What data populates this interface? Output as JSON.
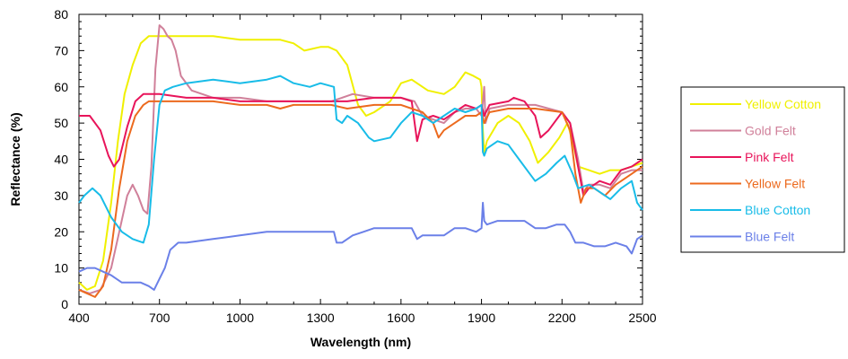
{
  "chart_data": {
    "type": "line",
    "title": "",
    "xlabel": "Wavelength (nm)",
    "ylabel": "Reflectance (%)",
    "xlim": [
      400,
      2500
    ],
    "ylim": [
      0,
      80
    ],
    "x_ticks": [
      "400",
      "700",
      "1000",
      "1300",
      "1600",
      "1900",
      "2200",
      "2500"
    ],
    "y_ticks": [
      "0",
      "10",
      "20",
      "30",
      "40",
      "50",
      "60",
      "70",
      "80"
    ],
    "grid": false,
    "legend_position": "right",
    "series": [
      {
        "name": "Yellow Cotton",
        "color": "#f0f000",
        "points": [
          [
            400,
            6
          ],
          [
            430,
            4
          ],
          [
            460,
            5
          ],
          [
            490,
            12
          ],
          [
            520,
            28
          ],
          [
            545,
            45
          ],
          [
            570,
            58
          ],
          [
            600,
            66
          ],
          [
            630,
            72
          ],
          [
            660,
            74
          ],
          [
            700,
            74
          ],
          [
            750,
            74
          ],
          [
            800,
            74
          ],
          [
            900,
            74
          ],
          [
            1000,
            73
          ],
          [
            1100,
            73
          ],
          [
            1150,
            73
          ],
          [
            1200,
            72
          ],
          [
            1240,
            70
          ],
          [
            1300,
            71
          ],
          [
            1330,
            71
          ],
          [
            1360,
            70
          ],
          [
            1400,
            66
          ],
          [
            1440,
            55
          ],
          [
            1470,
            52
          ],
          [
            1500,
            53
          ],
          [
            1560,
            56
          ],
          [
            1600,
            61
          ],
          [
            1640,
            62
          ],
          [
            1700,
            59
          ],
          [
            1760,
            58
          ],
          [
            1800,
            60
          ],
          [
            1840,
            64
          ],
          [
            1870,
            63
          ],
          [
            1895,
            62
          ],
          [
            1900,
            60
          ],
          [
            1905,
            48
          ],
          [
            1910,
            42
          ],
          [
            1920,
            45
          ],
          [
            1960,
            50
          ],
          [
            2000,
            52
          ],
          [
            2040,
            50
          ],
          [
            2080,
            45
          ],
          [
            2110,
            39
          ],
          [
            2150,
            42
          ],
          [
            2190,
            46
          ],
          [
            2220,
            50
          ],
          [
            2240,
            45
          ],
          [
            2260,
            38
          ],
          [
            2300,
            37
          ],
          [
            2340,
            36
          ],
          [
            2380,
            37
          ],
          [
            2420,
            37
          ],
          [
            2460,
            38
          ],
          [
            2500,
            39
          ]
        ]
      },
      {
        "name": "Gold Felt",
        "color": "#d0809a",
        "points": [
          [
            400,
            4
          ],
          [
            440,
            3
          ],
          [
            480,
            4
          ],
          [
            520,
            10
          ],
          [
            550,
            20
          ],
          [
            580,
            30
          ],
          [
            600,
            33
          ],
          [
            620,
            30
          ],
          [
            640,
            26
          ],
          [
            655,
            25
          ],
          [
            670,
            38
          ],
          [
            685,
            65
          ],
          [
            700,
            77
          ],
          [
            715,
            76
          ],
          [
            730,
            74
          ],
          [
            745,
            73
          ],
          [
            760,
            70
          ],
          [
            780,
            63
          ],
          [
            820,
            59
          ],
          [
            900,
            57
          ],
          [
            1000,
            57
          ],
          [
            1100,
            56
          ],
          [
            1200,
            56
          ],
          [
            1300,
            56
          ],
          [
            1340,
            56
          ],
          [
            1380,
            57
          ],
          [
            1420,
            58
          ],
          [
            1500,
            57
          ],
          [
            1600,
            57
          ],
          [
            1650,
            56
          ],
          [
            1680,
            52
          ],
          [
            1720,
            51
          ],
          [
            1760,
            50
          ],
          [
            1800,
            53
          ],
          [
            1840,
            54
          ],
          [
            1880,
            54
          ],
          [
            1900,
            52
          ],
          [
            1910,
            60
          ],
          [
            1915,
            50
          ],
          [
            1930,
            54
          ],
          [
            2000,
            55
          ],
          [
            2100,
            55
          ],
          [
            2200,
            53
          ],
          [
            2230,
            50
          ],
          [
            2260,
            40
          ],
          [
            2280,
            31
          ],
          [
            2300,
            33
          ],
          [
            2340,
            33
          ],
          [
            2380,
            32
          ],
          [
            2420,
            36
          ],
          [
            2460,
            37
          ],
          [
            2500,
            37
          ]
        ]
      },
      {
        "name": "Pink Felt",
        "color": "#e8145a",
        "points": [
          [
            400,
            52
          ],
          [
            440,
            52
          ],
          [
            480,
            48
          ],
          [
            510,
            41
          ],
          [
            530,
            38
          ],
          [
            550,
            40
          ],
          [
            580,
            49
          ],
          [
            610,
            56
          ],
          [
            640,
            58
          ],
          [
            700,
            58
          ],
          [
            800,
            57
          ],
          [
            900,
            57
          ],
          [
            1000,
            56
          ],
          [
            1100,
            56
          ],
          [
            1200,
            56
          ],
          [
            1300,
            56
          ],
          [
            1340,
            56
          ],
          [
            1400,
            56
          ],
          [
            1500,
            57
          ],
          [
            1600,
            57
          ],
          [
            1640,
            56
          ],
          [
            1660,
            45
          ],
          [
            1680,
            51
          ],
          [
            1720,
            52
          ],
          [
            1760,
            51
          ],
          [
            1800,
            53
          ],
          [
            1840,
            55
          ],
          [
            1880,
            54
          ],
          [
            1900,
            55
          ],
          [
            1910,
            52
          ],
          [
            1930,
            55
          ],
          [
            2000,
            56
          ],
          [
            2020,
            57
          ],
          [
            2060,
            56
          ],
          [
            2100,
            52
          ],
          [
            2120,
            46
          ],
          [
            2150,
            48
          ],
          [
            2200,
            53
          ],
          [
            2230,
            50
          ],
          [
            2260,
            38
          ],
          [
            2280,
            30
          ],
          [
            2300,
            32
          ],
          [
            2340,
            34
          ],
          [
            2380,
            33
          ],
          [
            2420,
            37
          ],
          [
            2460,
            38
          ],
          [
            2500,
            40
          ]
        ]
      },
      {
        "name": "Yellow Felt",
        "color": "#ec6a1e",
        "points": [
          [
            400,
            4
          ],
          [
            430,
            3
          ],
          [
            460,
            2
          ],
          [
            490,
            5
          ],
          [
            520,
            15
          ],
          [
            550,
            32
          ],
          [
            580,
            45
          ],
          [
            610,
            52
          ],
          [
            640,
            55
          ],
          [
            660,
            56
          ],
          [
            700,
            56
          ],
          [
            800,
            56
          ],
          [
            900,
            56
          ],
          [
            1000,
            55
          ],
          [
            1100,
            55
          ],
          [
            1150,
            54
          ],
          [
            1200,
            55
          ],
          [
            1300,
            55
          ],
          [
            1340,
            55
          ],
          [
            1400,
            54
          ],
          [
            1500,
            55
          ],
          [
            1600,
            55
          ],
          [
            1640,
            54
          ],
          [
            1680,
            53
          ],
          [
            1720,
            50
          ],
          [
            1740,
            46
          ],
          [
            1760,
            48
          ],
          [
            1800,
            50
          ],
          [
            1840,
            52
          ],
          [
            1880,
            52
          ],
          [
            1900,
            53
          ],
          [
            1910,
            50
          ],
          [
            1930,
            53
          ],
          [
            2000,
            54
          ],
          [
            2100,
            54
          ],
          [
            2200,
            53
          ],
          [
            2230,
            48
          ],
          [
            2250,
            36
          ],
          [
            2270,
            28
          ],
          [
            2290,
            32
          ],
          [
            2320,
            32
          ],
          [
            2360,
            30
          ],
          [
            2400,
            33
          ],
          [
            2440,
            35
          ],
          [
            2480,
            37
          ],
          [
            2500,
            38
          ]
        ]
      },
      {
        "name": "Blue Cotton",
        "color": "#18bce8",
        "points": [
          [
            400,
            28
          ],
          [
            420,
            30
          ],
          [
            450,
            32
          ],
          [
            480,
            30
          ],
          [
            520,
            24
          ],
          [
            560,
            20
          ],
          [
            600,
            18
          ],
          [
            640,
            17
          ],
          [
            660,
            22
          ],
          [
            680,
            40
          ],
          [
            700,
            55
          ],
          [
            720,
            59
          ],
          [
            750,
            60
          ],
          [
            800,
            61
          ],
          [
            900,
            62
          ],
          [
            1000,
            61
          ],
          [
            1100,
            62
          ],
          [
            1150,
            63
          ],
          [
            1200,
            61
          ],
          [
            1260,
            60
          ],
          [
            1300,
            61
          ],
          [
            1350,
            60
          ],
          [
            1360,
            51
          ],
          [
            1380,
            50
          ],
          [
            1400,
            52
          ],
          [
            1440,
            50
          ],
          [
            1480,
            46
          ],
          [
            1500,
            45
          ],
          [
            1560,
            46
          ],
          [
            1600,
            50
          ],
          [
            1640,
            53
          ],
          [
            1680,
            52
          ],
          [
            1720,
            50
          ],
          [
            1760,
            52
          ],
          [
            1800,
            54
          ],
          [
            1840,
            53
          ],
          [
            1880,
            54
          ],
          [
            1900,
            55
          ],
          [
            1905,
            42
          ],
          [
            1910,
            41
          ],
          [
            1920,
            43
          ],
          [
            1960,
            45
          ],
          [
            2000,
            44
          ],
          [
            2040,
            40
          ],
          [
            2080,
            36
          ],
          [
            2100,
            34
          ],
          [
            2140,
            36
          ],
          [
            2180,
            39
          ],
          [
            2210,
            41
          ],
          [
            2240,
            36
          ],
          [
            2260,
            32
          ],
          [
            2300,
            33
          ],
          [
            2340,
            31
          ],
          [
            2380,
            29
          ],
          [
            2420,
            32
          ],
          [
            2460,
            34
          ],
          [
            2480,
            28
          ],
          [
            2500,
            26
          ]
        ]
      },
      {
        "name": "Blue Felt",
        "color": "#6b80e8",
        "points": [
          [
            400,
            9
          ],
          [
            430,
            10
          ],
          [
            460,
            10
          ],
          [
            490,
            9
          ],
          [
            520,
            8
          ],
          [
            560,
            6
          ],
          [
            600,
            6
          ],
          [
            630,
            6
          ],
          [
            660,
            5
          ],
          [
            680,
            4
          ],
          [
            700,
            7
          ],
          [
            720,
            10
          ],
          [
            740,
            15
          ],
          [
            770,
            17
          ],
          [
            800,
            17
          ],
          [
            900,
            18
          ],
          [
            1000,
            19
          ],
          [
            1100,
            20
          ],
          [
            1200,
            20
          ],
          [
            1300,
            20
          ],
          [
            1350,
            20
          ],
          [
            1360,
            17
          ],
          [
            1380,
            17
          ],
          [
            1420,
            19
          ],
          [
            1460,
            20
          ],
          [
            1500,
            21
          ],
          [
            1600,
            21
          ],
          [
            1640,
            21
          ],
          [
            1660,
            18
          ],
          [
            1680,
            19
          ],
          [
            1720,
            19
          ],
          [
            1760,
            19
          ],
          [
            1800,
            21
          ],
          [
            1840,
            21
          ],
          [
            1880,
            20
          ],
          [
            1900,
            21
          ],
          [
            1905,
            28
          ],
          [
            1910,
            23
          ],
          [
            1920,
            22
          ],
          [
            1960,
            23
          ],
          [
            2000,
            23
          ],
          [
            2060,
            23
          ],
          [
            2100,
            21
          ],
          [
            2140,
            21
          ],
          [
            2180,
            22
          ],
          [
            2210,
            22
          ],
          [
            2230,
            20
          ],
          [
            2250,
            17
          ],
          [
            2280,
            17
          ],
          [
            2320,
            16
          ],
          [
            2360,
            16
          ],
          [
            2400,
            17
          ],
          [
            2440,
            16
          ],
          [
            2460,
            14
          ],
          [
            2480,
            18
          ],
          [
            2500,
            19
          ]
        ]
      }
    ]
  }
}
